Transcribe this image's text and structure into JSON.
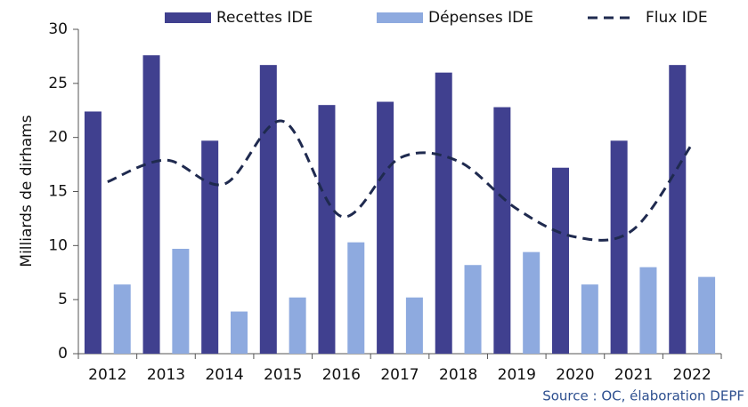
{
  "chart_data": {
    "type": "bar",
    "y_label": "Milliards de dirhams",
    "source": "Source : OC, élaboration DEPF",
    "categories": [
      "2012",
      "2013",
      "2014",
      "2015",
      "2016",
      "2017",
      "2018",
      "2019",
      "2020",
      "2021",
      "2022"
    ],
    "series": [
      {
        "name": "Recettes IDE",
        "type": "bar",
        "color": "#40408f",
        "values": [
          22.4,
          27.6,
          19.7,
          26.7,
          23.0,
          23.3,
          26.0,
          22.8,
          17.2,
          19.7,
          26.7
        ]
      },
      {
        "name": "Dépenses IDE",
        "type": "bar",
        "color": "#8eaadf",
        "values": [
          6.4,
          9.7,
          3.9,
          5.2,
          10.3,
          5.2,
          8.2,
          9.4,
          6.4,
          8.0,
          7.1
        ]
      },
      {
        "name": "Flux IDE",
        "type": "line",
        "color": "#1f2a4f",
        "values": [
          15.9,
          17.9,
          15.7,
          21.5,
          12.7,
          18.1,
          17.8,
          13.4,
          10.8,
          11.5,
          19.4
        ]
      }
    ],
    "ylim": [
      0,
      30
    ],
    "yticks": [
      0,
      5,
      10,
      15,
      20,
      25,
      30
    ]
  }
}
